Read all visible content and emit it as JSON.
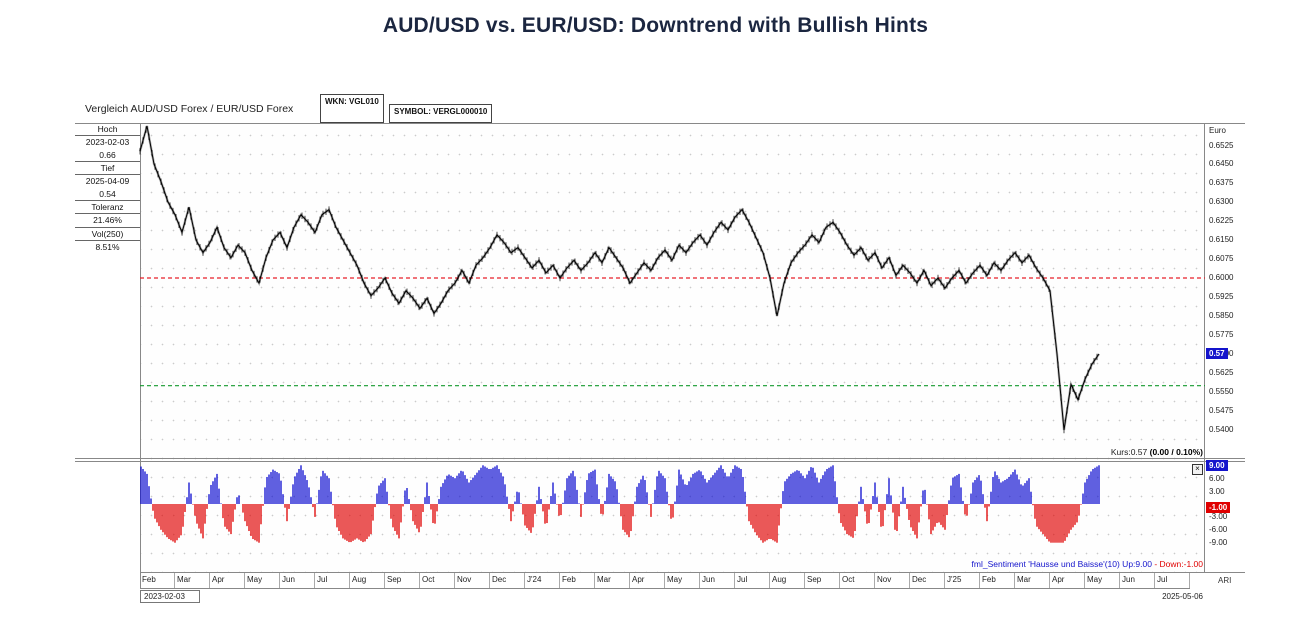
{
  "page": {
    "title": "AUD/USD vs. EUR/USD: Downtrend with Bullish Hints"
  },
  "header": {
    "instrument": "Vergleich AUD/USD Forex / EUR/USD Forex",
    "wkn": "WKN: VGL010",
    "symbol": "SYMBOL: VERGL000010"
  },
  "info_panel": {
    "hoch_label": "Hoch",
    "hoch_date": "2023-02-03",
    "hoch_value": "0.66",
    "tief_label": "Tief",
    "tief_date": "2025-04-09",
    "tief_value": "0.54",
    "toleranz_label": "Toleranz",
    "toleranz_value": "21.46%",
    "vol_label": "Vol(250)",
    "vol_value": "8.51%"
  },
  "readouts": {
    "kurs_text": "Kurs:0.57 ",
    "kurs_change": "(0.00 / 0.10%)",
    "sentiment_blue": "fml_Sentiment 'Hausse und Baisse'(10) Up:9.00 ",
    "sentiment_red": "- Down:-1.00"
  },
  "icons": {
    "indicator_close": "×"
  },
  "footer": {
    "ari_label": "ARI"
  },
  "chart_data": {
    "type": [
      "line",
      "bar"
    ],
    "title": "Vergleich AUD/USD Forex / EUR/USD Forex",
    "x_axis": {
      "months": [
        "Feb",
        "Mar",
        "Apr",
        "May",
        "Jun",
        "Jul",
        "Aug",
        "Sep",
        "Oct",
        "Nov",
        "Dec",
        "J'24",
        "Feb",
        "Mar",
        "Apr",
        "May",
        "Jun",
        "Jul",
        "Aug",
        "Sep",
        "Oct",
        "Nov",
        "Dec",
        "J'25",
        "Feb",
        "Mar",
        "Apr",
        "May",
        "Jun",
        "Jul"
      ],
      "start_date": "2023-02-03",
      "end_date": "2025-05-06",
      "x_start": 0,
      "x_step": 0.2
    },
    "price_chart": {
      "type": "line",
      "ylabel": "Euro",
      "ylim": [
        0.54,
        0.6525
      ],
      "yticks": [
        0.6525,
        0.645,
        0.6375,
        0.63,
        0.6225,
        0.615,
        0.6075,
        0.6,
        0.5925,
        0.585,
        0.5775,
        0.57,
        0.5625,
        0.555,
        0.5475,
        0.54
      ],
      "levels": {
        "red_dashed": 0.6,
        "green_dashed": 0.5575
      },
      "last_price": "0.57",
      "high": {
        "date": "2023-02-03",
        "value": 0.66
      },
      "low": {
        "date": "2025-04-09",
        "value": 0.54
      },
      "values": [
        0.65,
        0.66,
        0.645,
        0.638,
        0.63,
        0.625,
        0.618,
        0.628,
        0.615,
        0.61,
        0.614,
        0.62,
        0.612,
        0.608,
        0.613,
        0.61,
        0.603,
        0.598,
        0.608,
        0.615,
        0.618,
        0.612,
        0.62,
        0.625,
        0.622,
        0.618,
        0.625,
        0.627,
        0.62,
        0.615,
        0.61,
        0.605,
        0.598,
        0.593,
        0.596,
        0.6,
        0.594,
        0.59,
        0.595,
        0.592,
        0.588,
        0.592,
        0.586,
        0.59,
        0.595,
        0.598,
        0.603,
        0.598,
        0.605,
        0.608,
        0.612,
        0.617,
        0.614,
        0.61,
        0.612,
        0.608,
        0.604,
        0.607,
        0.602,
        0.605,
        0.6,
        0.604,
        0.607,
        0.603,
        0.606,
        0.61,
        0.606,
        0.612,
        0.608,
        0.604,
        0.598,
        0.602,
        0.606,
        0.603,
        0.608,
        0.611,
        0.607,
        0.613,
        0.61,
        0.614,
        0.617,
        0.613,
        0.618,
        0.622,
        0.619,
        0.624,
        0.627,
        0.622,
        0.616,
        0.61,
        0.6,
        0.585,
        0.598,
        0.606,
        0.61,
        0.613,
        0.617,
        0.614,
        0.62,
        0.622,
        0.618,
        0.613,
        0.609,
        0.612,
        0.607,
        0.61,
        0.604,
        0.608,
        0.601,
        0.605,
        0.602,
        0.598,
        0.603,
        0.597,
        0.6,
        0.596,
        0.6,
        0.603,
        0.598,
        0.602,
        0.605,
        0.601,
        0.606,
        0.603,
        0.607,
        0.61,
        0.606,
        0.609,
        0.604,
        0.6,
        0.595,
        0.57,
        0.54,
        0.558,
        0.552,
        0.56,
        0.566,
        0.57
      ]
    },
    "sentiment_chart": {
      "type": "bar",
      "name": "fml_Sentiment 'Hausse und Baisse'(10)",
      "ylim": [
        -9,
        9
      ],
      "yticks": [
        9,
        6,
        3,
        -1,
        -3,
        -6,
        -9
      ],
      "up": 9,
      "down": -1,
      "values": [
        9,
        7,
        -3,
        -6,
        -8,
        -9,
        -7,
        5,
        -4,
        -8,
        4,
        7,
        -5,
        -7,
        3,
        -4,
        -8,
        -9,
        6,
        8,
        7,
        -4,
        6,
        9,
        5,
        -3,
        8,
        6,
        -5,
        -8,
        -9,
        -8,
        -9,
        -7,
        4,
        6,
        -5,
        -8,
        5,
        -4,
        -7,
        5,
        -6,
        4,
        7,
        6,
        8,
        5,
        7,
        9,
        8,
        9,
        6,
        -4,
        4,
        -5,
        -7,
        4,
        -6,
        5,
        -4,
        6,
        8,
        -3,
        7,
        8,
        -4,
        7,
        5,
        -6,
        -8,
        4,
        7,
        -3,
        8,
        6,
        -5,
        8,
        4,
        7,
        8,
        5,
        7,
        9,
        6,
        9,
        8,
        -4,
        -7,
        -9,
        -8,
        -9,
        5,
        7,
        8,
        6,
        9,
        5,
        8,
        9,
        -4,
        -7,
        -8,
        4,
        -6,
        5,
        -7,
        6,
        -8,
        4,
        -5,
        -8,
        5,
        -7,
        -4,
        -6,
        6,
        7,
        -4,
        5,
        7,
        -4,
        8,
        5,
        6,
        8,
        4,
        6,
        -5,
        -7,
        -9,
        -9,
        -9,
        -6,
        -4,
        5,
        8,
        9
      ]
    }
  }
}
